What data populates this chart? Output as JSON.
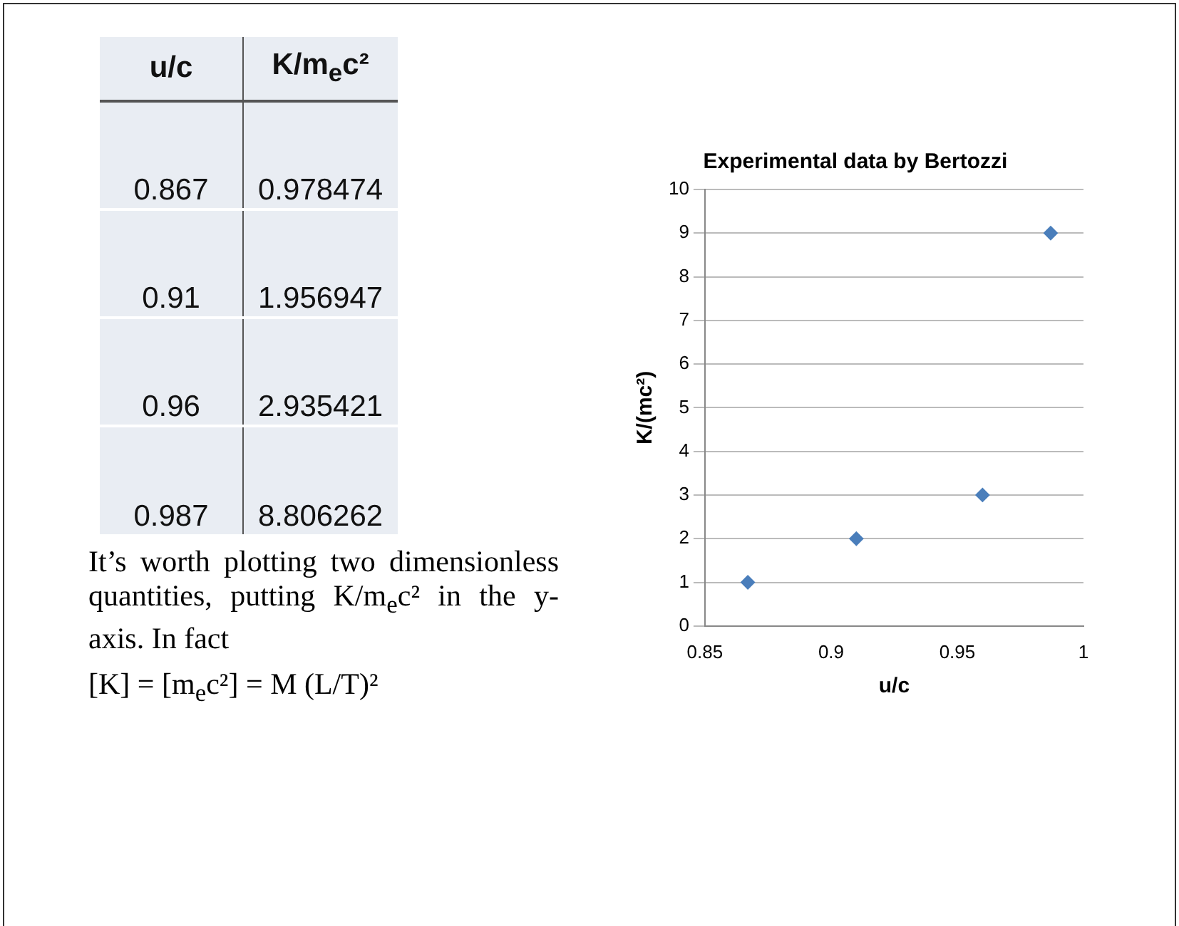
{
  "chart_data": {
    "type": "scatter",
    "title": "Experimental data by Bertozzi",
    "xlabel": "u/c",
    "ylabel": "K/(mc²)",
    "x": [
      0.867,
      0.91,
      0.96,
      0.987
    ],
    "values": [
      1,
      2,
      3,
      9
    ],
    "color": "#4a7ebb",
    "marker": "diamond",
    "xlim": [
      0.85,
      1
    ],
    "xticks": [
      0.85,
      0.9,
      0.95,
      1
    ],
    "ylim": [
      0,
      10
    ],
    "yticks": [
      0,
      1,
      2,
      3,
      4,
      5,
      6,
      7,
      8,
      9,
      10
    ],
    "grid": "y",
    "legend": false,
    "annotations": [
      "u/c",
      "K/m$_{e}$c²",
      "0.867",
      "0.978474",
      "0.91",
      "1.956947",
      "0.96",
      "2.935421",
      "0.987",
      "8.806262",
      "It’s worth plotting two dimensionless quantities, putting K/m$_{e}$c² in the y-axis. In fact",
      "[K] = [m$_{e}$c²] = M (L/T)²"
    ]
  }
}
